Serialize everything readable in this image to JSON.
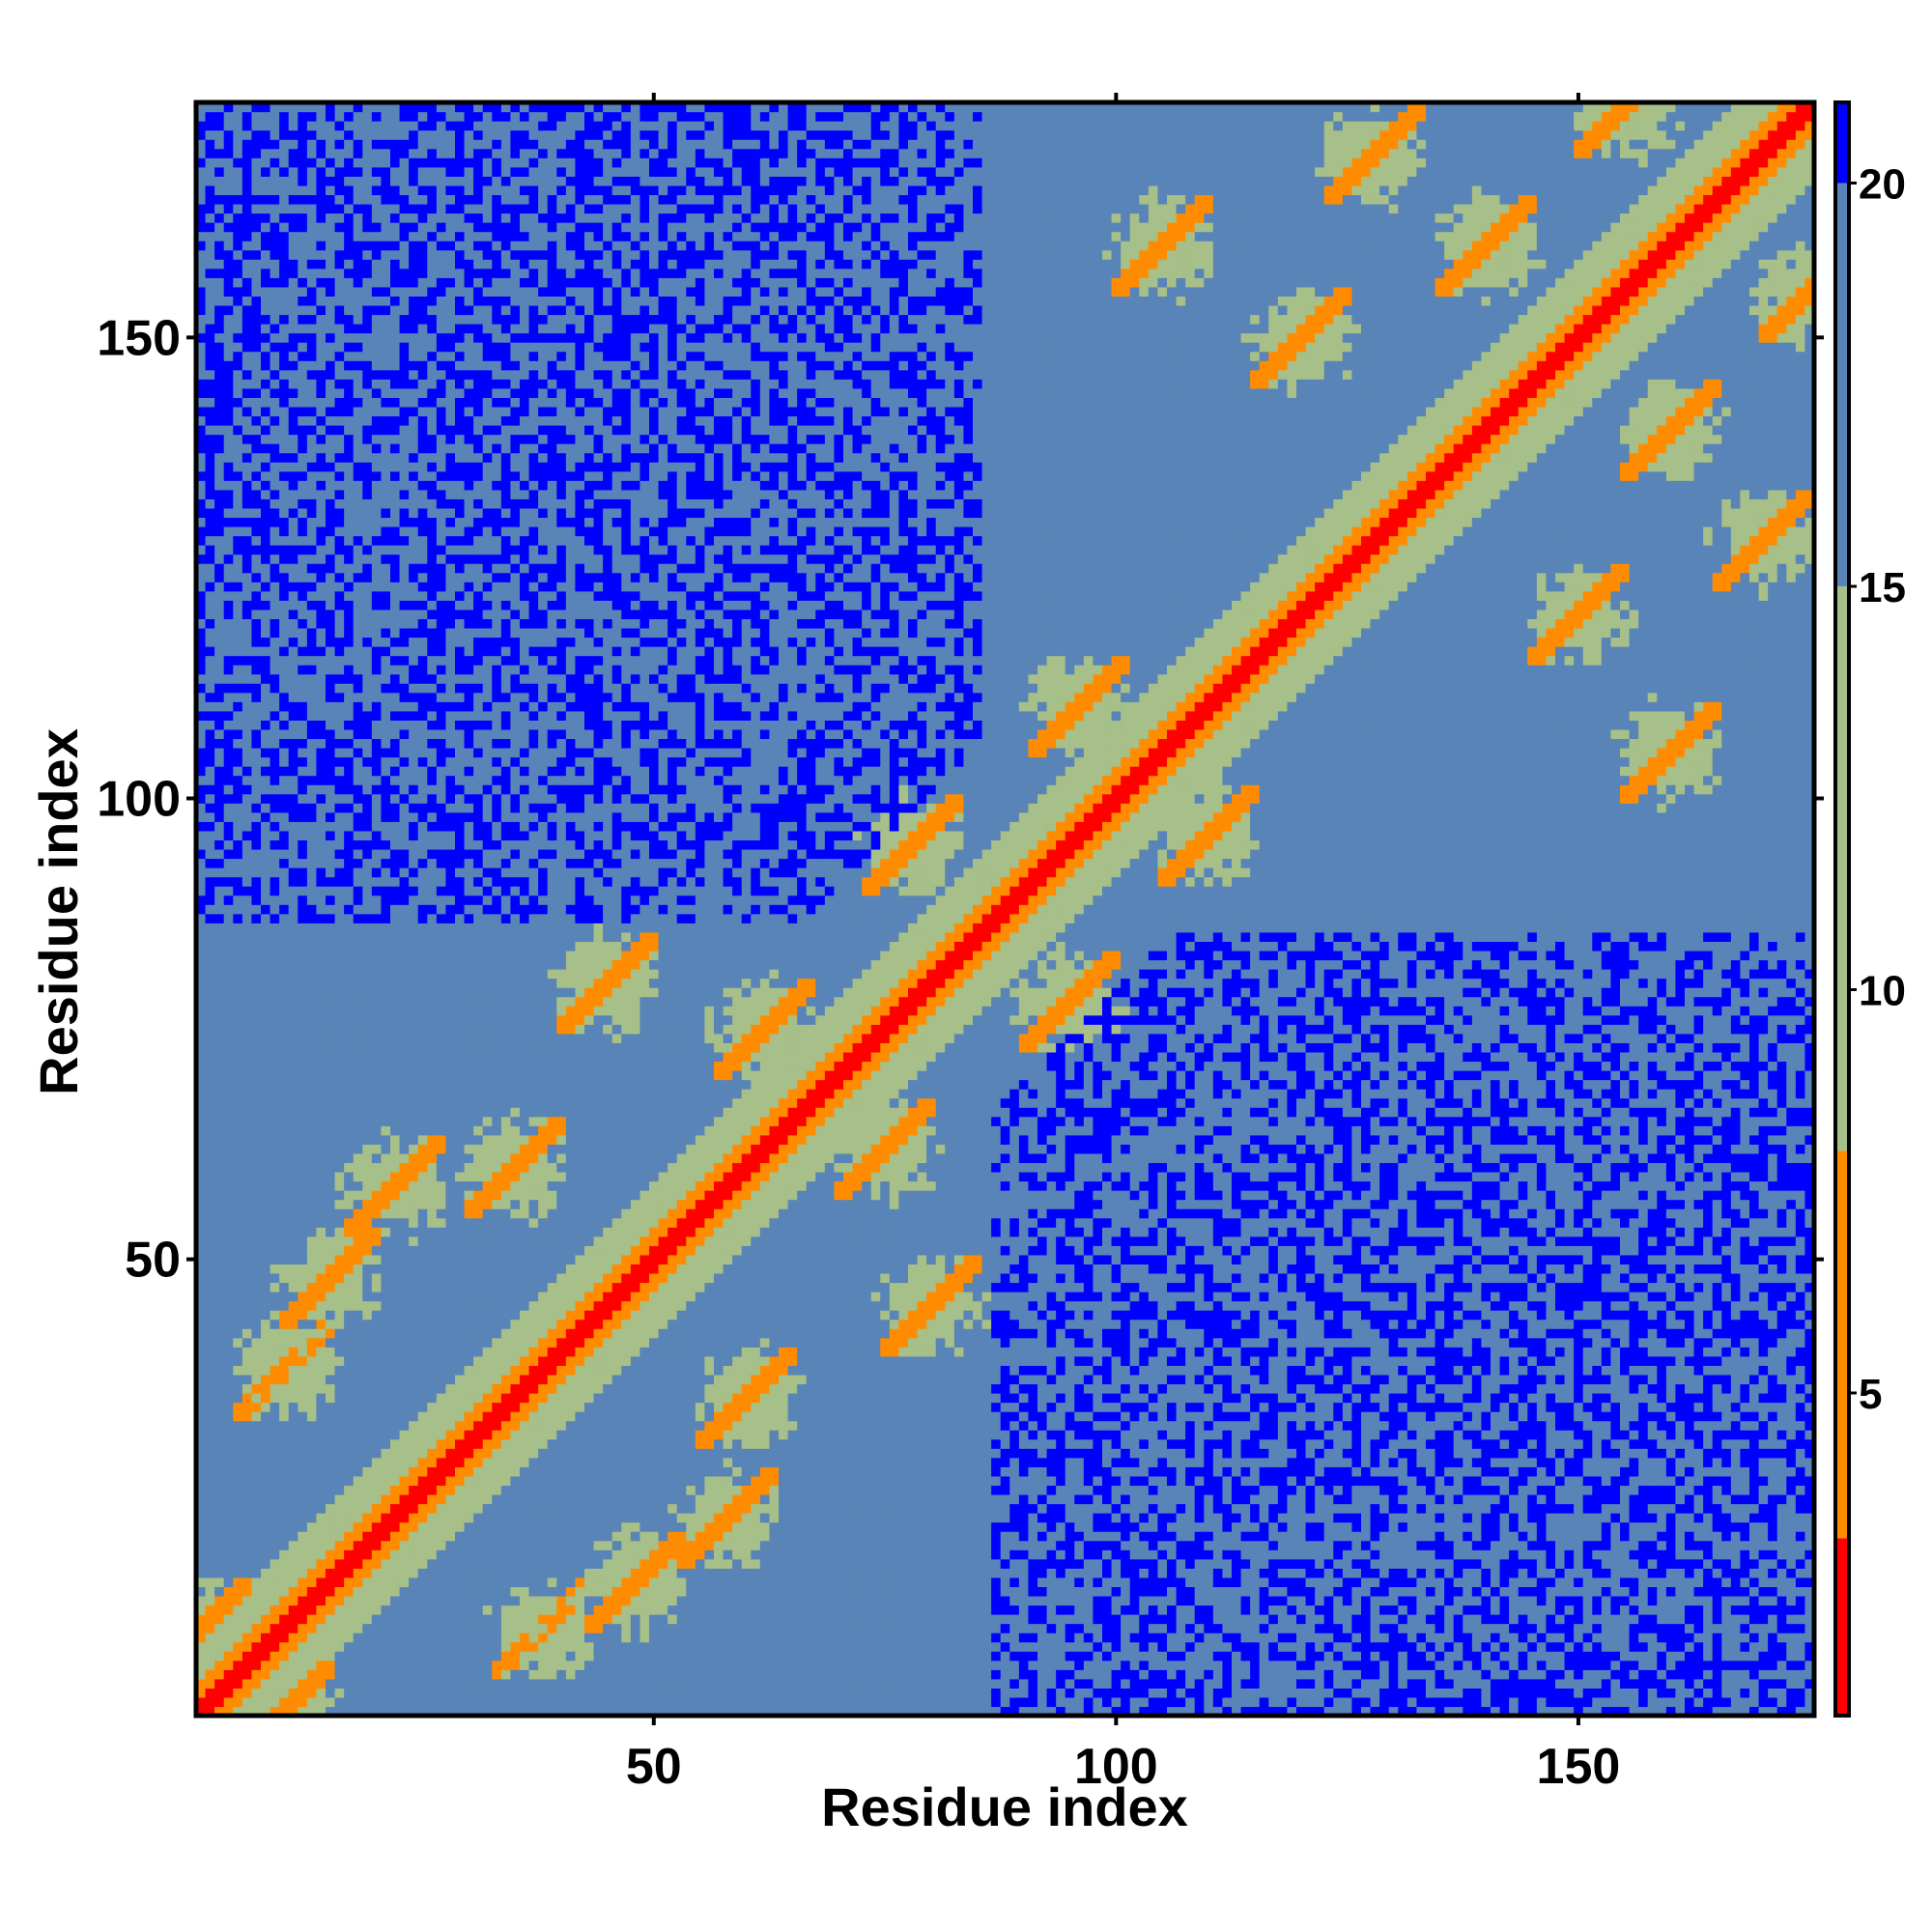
{
  "chart_data": {
    "type": "heatmap",
    "title": "",
    "xlabel": "Residue index",
    "ylabel": "Residue index",
    "n_residues": 175,
    "xlim": [
      1,
      175
    ],
    "ylim": [
      1,
      175
    ],
    "x_ticks": [
      50,
      100,
      150
    ],
    "y_ticks": [
      50,
      100,
      150
    ],
    "colorbar": {
      "ticks": [
        5,
        10,
        15,
        20
      ],
      "range": [
        1,
        21
      ],
      "colors": [
        {
          "upto": 3.2,
          "color": "#ff0000"
        },
        {
          "upto": 8.0,
          "color": "#ff8c00"
        },
        {
          "upto": 15.0,
          "color": "#a7bf88"
        },
        {
          "upto": 20.0,
          "color": "#5884b7"
        },
        {
          "upto": 22.0,
          "color": "#0000ff"
        }
      ]
    },
    "matrix_description": {
      "diagonal_value": 1,
      "helix_segments": [
        [
          5,
          20
        ],
        [
          30,
          52
        ],
        [
          55,
          68
        ],
        [
          90,
          100
        ],
        [
          108,
          126
        ],
        [
          132,
          147
        ],
        [
          150,
          168
        ]
      ],
      "contact_hotspots": [
        {
          "i": 1,
          "j": 10,
          "value": 6
        },
        {
          "i": 15,
          "j": 48,
          "value": 6
        },
        {
          "i": 22,
          "j": 58,
          "value": 6
        },
        {
          "i": 10,
          "j": 38,
          "value": 7
        },
        {
          "i": 35,
          "j": 60,
          "value": 6
        },
        {
          "i": 45,
          "j": 80,
          "value": 6
        },
        {
          "i": 62,
          "j": 75,
          "value": 6
        },
        {
          "i": 78,
          "j": 95,
          "value": 6
        },
        {
          "i": 96,
          "j": 110,
          "value": 6
        },
        {
          "i": 105,
          "j": 160,
          "value": 6
        },
        {
          "i": 120,
          "j": 150,
          "value": 6
        },
        {
          "i": 128,
          "j": 170,
          "value": 6
        },
        {
          "i": 140,
          "j": 160,
          "value": 6
        },
        {
          "i": 155,
          "j": 175,
          "value": 6
        }
      ],
      "far_region_value": 21,
      "background_value": 18
    }
  }
}
